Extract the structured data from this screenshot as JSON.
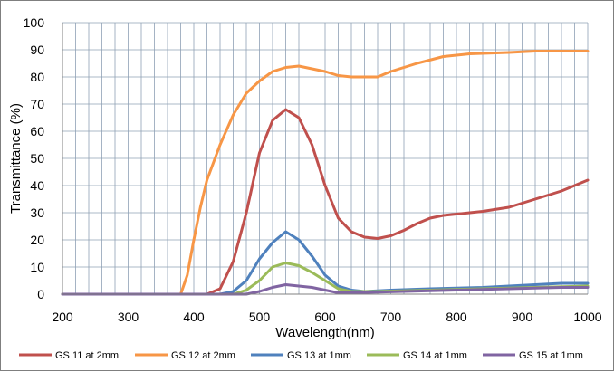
{
  "chart_data": {
    "type": "line",
    "title": "",
    "xlabel": "Wavelength(nm)",
    "ylabel": "Transmittance (%)",
    "xlim": [
      200,
      1000
    ],
    "ylim": [
      0,
      100
    ],
    "x_ticks": [
      200,
      300,
      400,
      500,
      600,
      700,
      800,
      900,
      1000
    ],
    "y_ticks": [
      0,
      10,
      20,
      30,
      40,
      50,
      60,
      70,
      80,
      90,
      100
    ],
    "x_minor_step": 20,
    "grid": true,
    "legend_position": "bottom",
    "series": [
      {
        "name": "GS 11 at 2mm",
        "color": "#c0504d",
        "points": [
          [
            200,
            0
          ],
          [
            400,
            0
          ],
          [
            420,
            0
          ],
          [
            440,
            2
          ],
          [
            460,
            12
          ],
          [
            480,
            30
          ],
          [
            500,
            52
          ],
          [
            520,
            64
          ],
          [
            540,
            68
          ],
          [
            560,
            65
          ],
          [
            580,
            55
          ],
          [
            600,
            40
          ],
          [
            620,
            28
          ],
          [
            640,
            23
          ],
          [
            660,
            21
          ],
          [
            680,
            20.5
          ],
          [
            700,
            21.5
          ],
          [
            720,
            23.5
          ],
          [
            740,
            26
          ],
          [
            760,
            28
          ],
          [
            780,
            29
          ],
          [
            800,
            29.5
          ],
          [
            840,
            30.5
          ],
          [
            880,
            32
          ],
          [
            920,
            35
          ],
          [
            960,
            38
          ],
          [
            1000,
            42
          ]
        ]
      },
      {
        "name": "GS 12 at 2mm",
        "color": "#f79646",
        "points": [
          [
            200,
            0
          ],
          [
            380,
            0
          ],
          [
            390,
            7
          ],
          [
            400,
            20
          ],
          [
            410,
            32
          ],
          [
            420,
            42
          ],
          [
            440,
            55
          ],
          [
            460,
            66
          ],
          [
            480,
            74
          ],
          [
            500,
            78.5
          ],
          [
            520,
            82
          ],
          [
            540,
            83.5
          ],
          [
            560,
            84
          ],
          [
            580,
            83
          ],
          [
            600,
            82
          ],
          [
            620,
            80.5
          ],
          [
            640,
            80
          ],
          [
            660,
            80
          ],
          [
            680,
            80
          ],
          [
            700,
            82
          ],
          [
            740,
            85
          ],
          [
            780,
            87.5
          ],
          [
            820,
            88.5
          ],
          [
            880,
            89
          ],
          [
            920,
            89.5
          ],
          [
            1000,
            89.5
          ]
        ]
      },
      {
        "name": "GS 13 at 1mm",
        "color": "#4f81bd",
        "points": [
          [
            200,
            0
          ],
          [
            440,
            0
          ],
          [
            460,
            1
          ],
          [
            480,
            5
          ],
          [
            500,
            13
          ],
          [
            520,
            19
          ],
          [
            540,
            23
          ],
          [
            560,
            20
          ],
          [
            580,
            14
          ],
          [
            600,
            7
          ],
          [
            620,
            3
          ],
          [
            640,
            1.5
          ],
          [
            660,
            1
          ],
          [
            700,
            1.5
          ],
          [
            760,
            2
          ],
          [
            840,
            2.5
          ],
          [
            920,
            3.5
          ],
          [
            960,
            4
          ],
          [
            1000,
            4
          ]
        ]
      },
      {
        "name": "GS 14 at 1mm",
        "color": "#9bbb59",
        "points": [
          [
            200,
            0
          ],
          [
            460,
            0
          ],
          [
            480,
            1.5
          ],
          [
            500,
            5
          ],
          [
            520,
            10
          ],
          [
            540,
            11.5
          ],
          [
            560,
            10.5
          ],
          [
            580,
            8
          ],
          [
            600,
            5
          ],
          [
            620,
            2
          ],
          [
            640,
            1
          ],
          [
            680,
            1
          ],
          [
            760,
            1.5
          ],
          [
            840,
            2
          ],
          [
            920,
            2.5
          ],
          [
            1000,
            3
          ]
        ]
      },
      {
        "name": "GS 15 at 1mm",
        "color": "#8064a2",
        "points": [
          [
            200,
            0
          ],
          [
            480,
            0
          ],
          [
            500,
            1
          ],
          [
            520,
            2.5
          ],
          [
            540,
            3.5
          ],
          [
            560,
            3
          ],
          [
            580,
            2.5
          ],
          [
            600,
            1.5
          ],
          [
            620,
            0.5
          ],
          [
            640,
            0.5
          ],
          [
            720,
            1
          ],
          [
            800,
            1.5
          ],
          [
            880,
            2
          ],
          [
            960,
            2.5
          ],
          [
            1000,
            2.5
          ]
        ]
      }
    ]
  }
}
